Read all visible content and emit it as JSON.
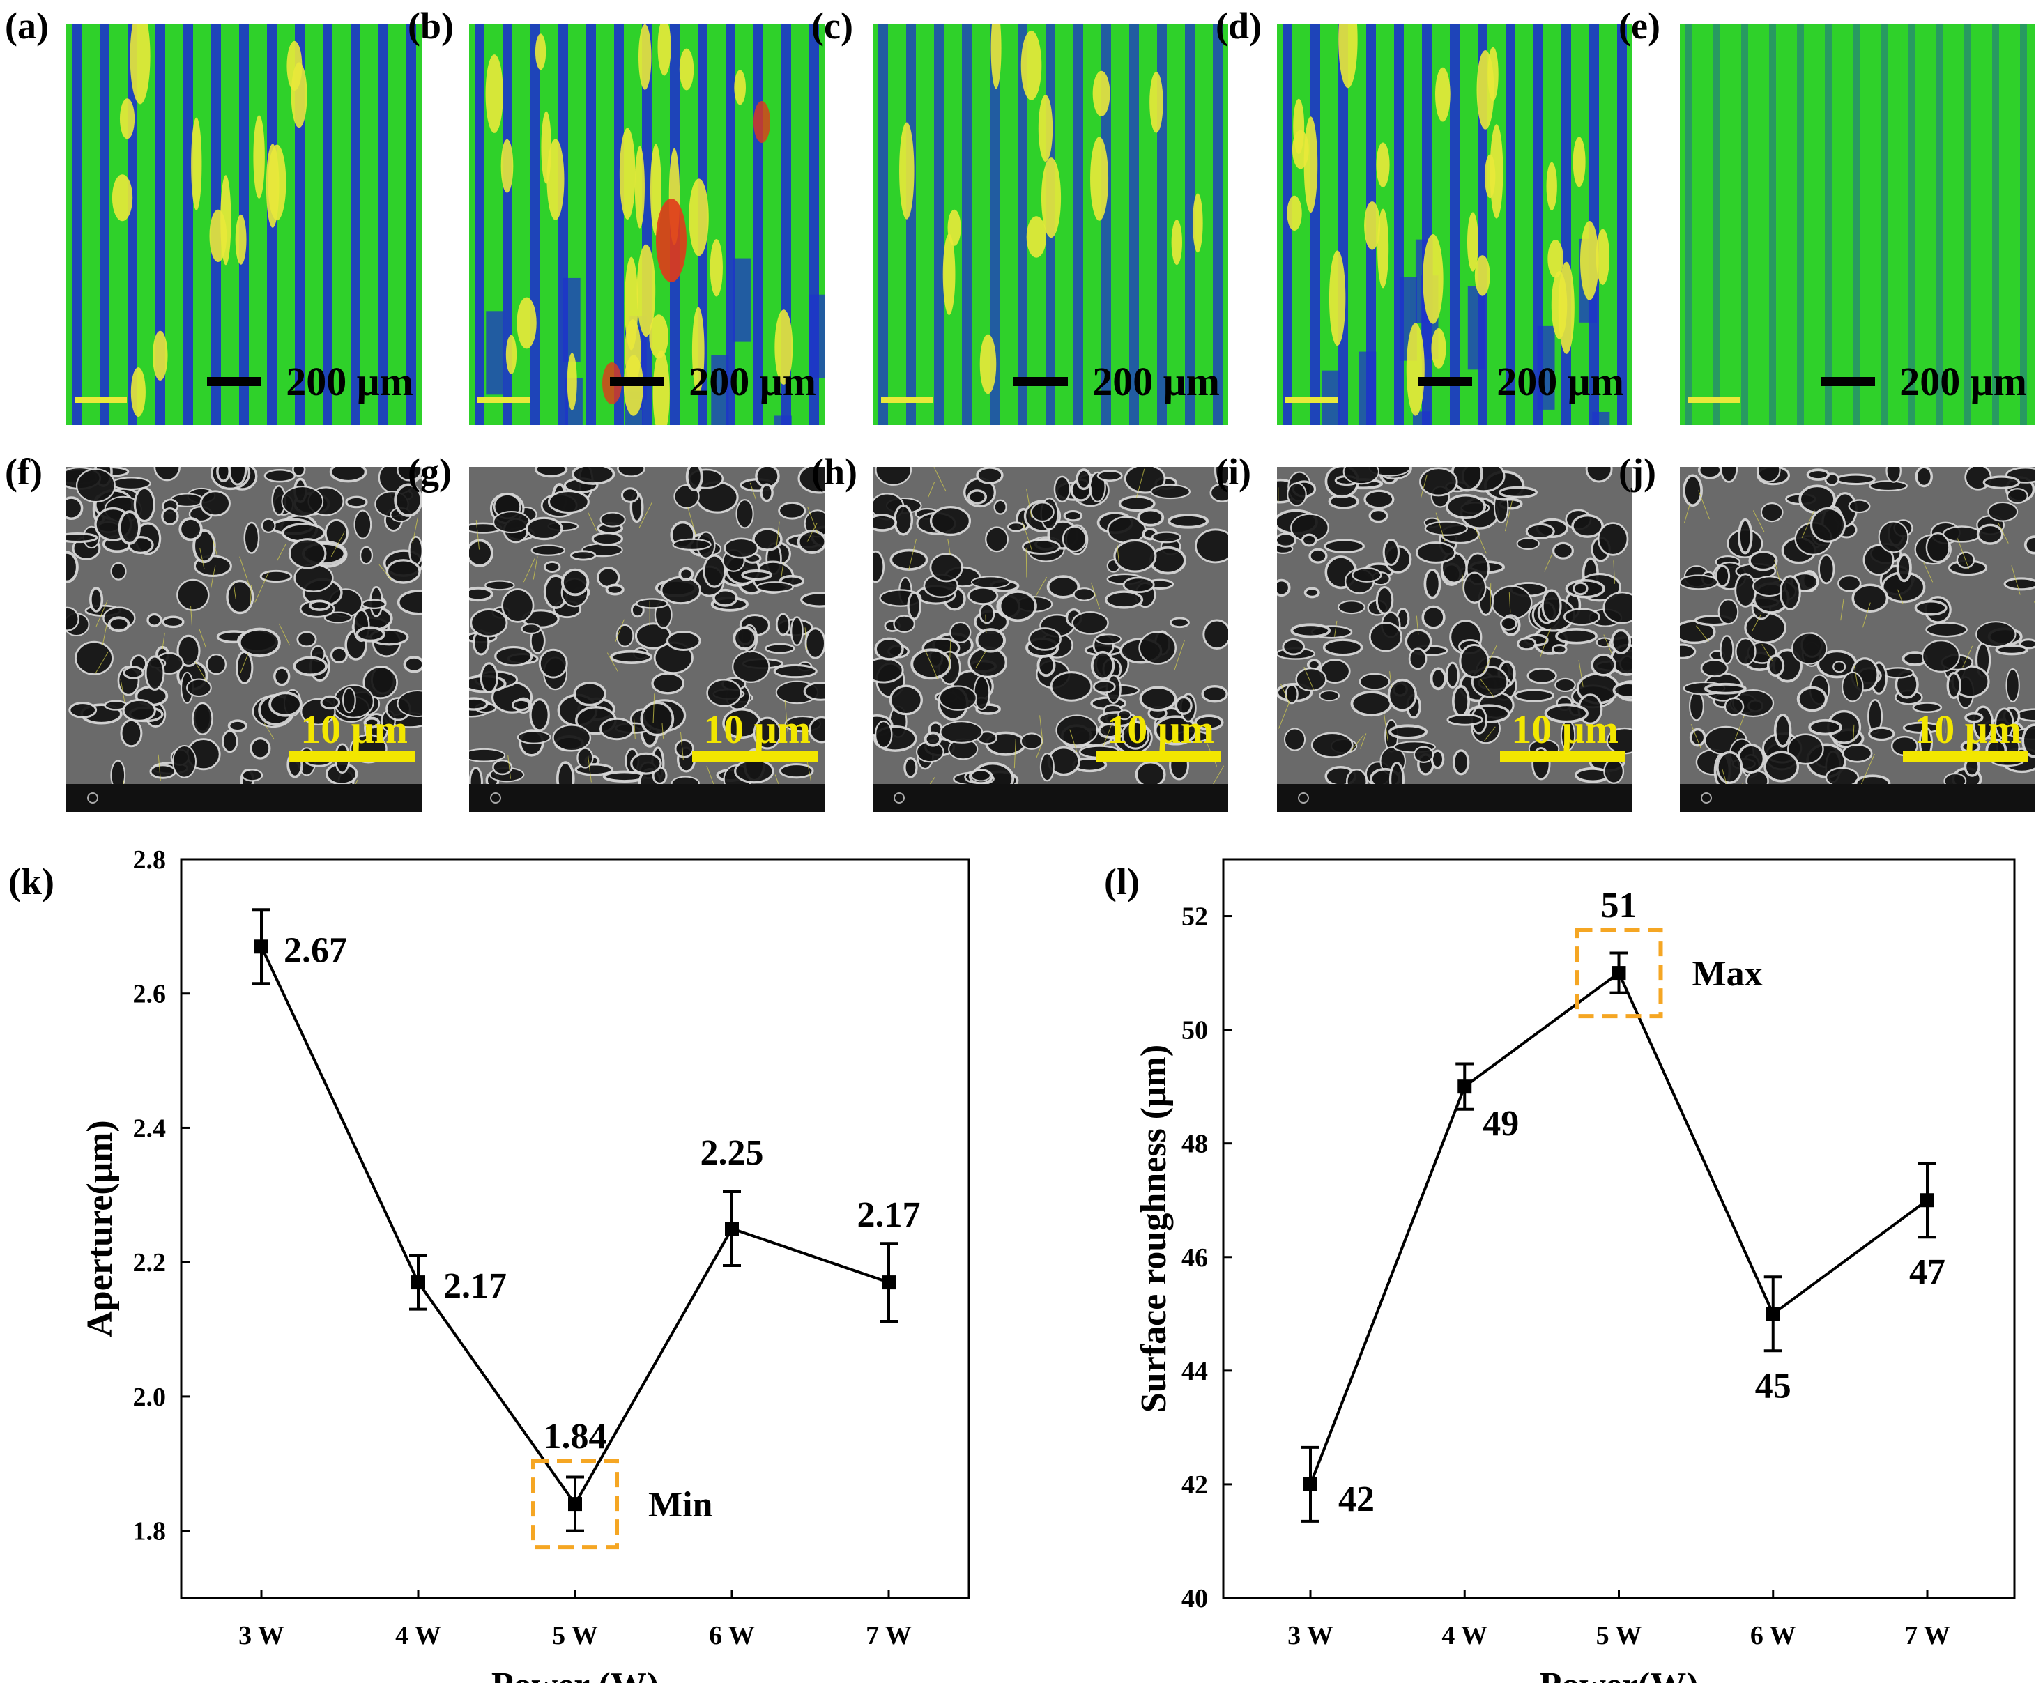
{
  "colors": {
    "green": "#2fd12a",
    "blue": "#1d34c9",
    "yellow": "#e9e93a",
    "red": "#e03b1a",
    "orange": "#f5a623",
    "sem_scale": "#f2e600"
  },
  "profile_panels": [
    {
      "label": "(a)",
      "scale": "200 μm",
      "icon": "profilometry-map"
    },
    {
      "label": "(b)",
      "scale": "200 μm",
      "icon": "profilometry-map"
    },
    {
      "label": "(c)",
      "scale": "200 μm",
      "icon": "profilometry-map"
    },
    {
      "label": "(d)",
      "scale": "200 μm",
      "icon": "profilometry-map"
    },
    {
      "label": "(e)",
      "scale": "200 μm",
      "icon": "profilometry-map"
    }
  ],
  "sem_panels": [
    {
      "label": "(f)",
      "scale": "10 μm",
      "icon": "sem-micrograph"
    },
    {
      "label": "(g)",
      "scale": "10 μm",
      "icon": "sem-micrograph"
    },
    {
      "label": "(h)",
      "scale": "10 μm",
      "icon": "sem-micrograph"
    },
    {
      "label": "(i)",
      "scale": "10 μm",
      "icon": "sem-micrograph"
    },
    {
      "label": "(j)",
      "scale": "10 μm",
      "icon": "sem-micrograph"
    }
  ],
  "chart_data": [
    {
      "panel_label": "(k)",
      "type": "line",
      "categories": [
        "3 W",
        "4 W",
        "5 W",
        "6 W",
        "7 W"
      ],
      "values": [
        2.67,
        2.17,
        1.84,
        2.25,
        2.17
      ],
      "errors": [
        0.055,
        0.04,
        0.04,
        0.055,
        0.058
      ],
      "data_labels": [
        "2.67",
        "2.17",
        "1.84",
        "2.25",
        "2.17"
      ],
      "xlabel": "Power (W)",
      "ylabel": "Aperture(μm)",
      "ylim": [
        1.7,
        2.8
      ],
      "yticks": [
        1.8,
        2.0,
        2.2,
        2.4,
        2.6,
        2.8
      ],
      "ytick_labels": [
        "1.8",
        "2.0",
        "2.2",
        "2.4",
        "2.6",
        "2.8"
      ],
      "annotation": {
        "text": "Min",
        "category": "5 W"
      }
    },
    {
      "panel_label": "(l)",
      "type": "line",
      "categories": [
        "3 W",
        "4 W",
        "5 W",
        "6 W",
        "7 W"
      ],
      "values": [
        42,
        49,
        51,
        45,
        47
      ],
      "errors": [
        0.65,
        0.4,
        0.35,
        0.65,
        0.65
      ],
      "data_labels": [
        "42",
        "49",
        "51",
        "45",
        "47"
      ],
      "xlabel": "Power(W)",
      "ylabel": "Surface roughness  (μm)",
      "ylim": [
        40,
        53
      ],
      "yticks": [
        40,
        42,
        44,
        46,
        48,
        50,
        52
      ],
      "ytick_labels": [
        "40",
        "42",
        "44",
        "46",
        "48",
        "50",
        "52"
      ],
      "annotation": {
        "text": "Max",
        "category": "5 W"
      }
    }
  ]
}
